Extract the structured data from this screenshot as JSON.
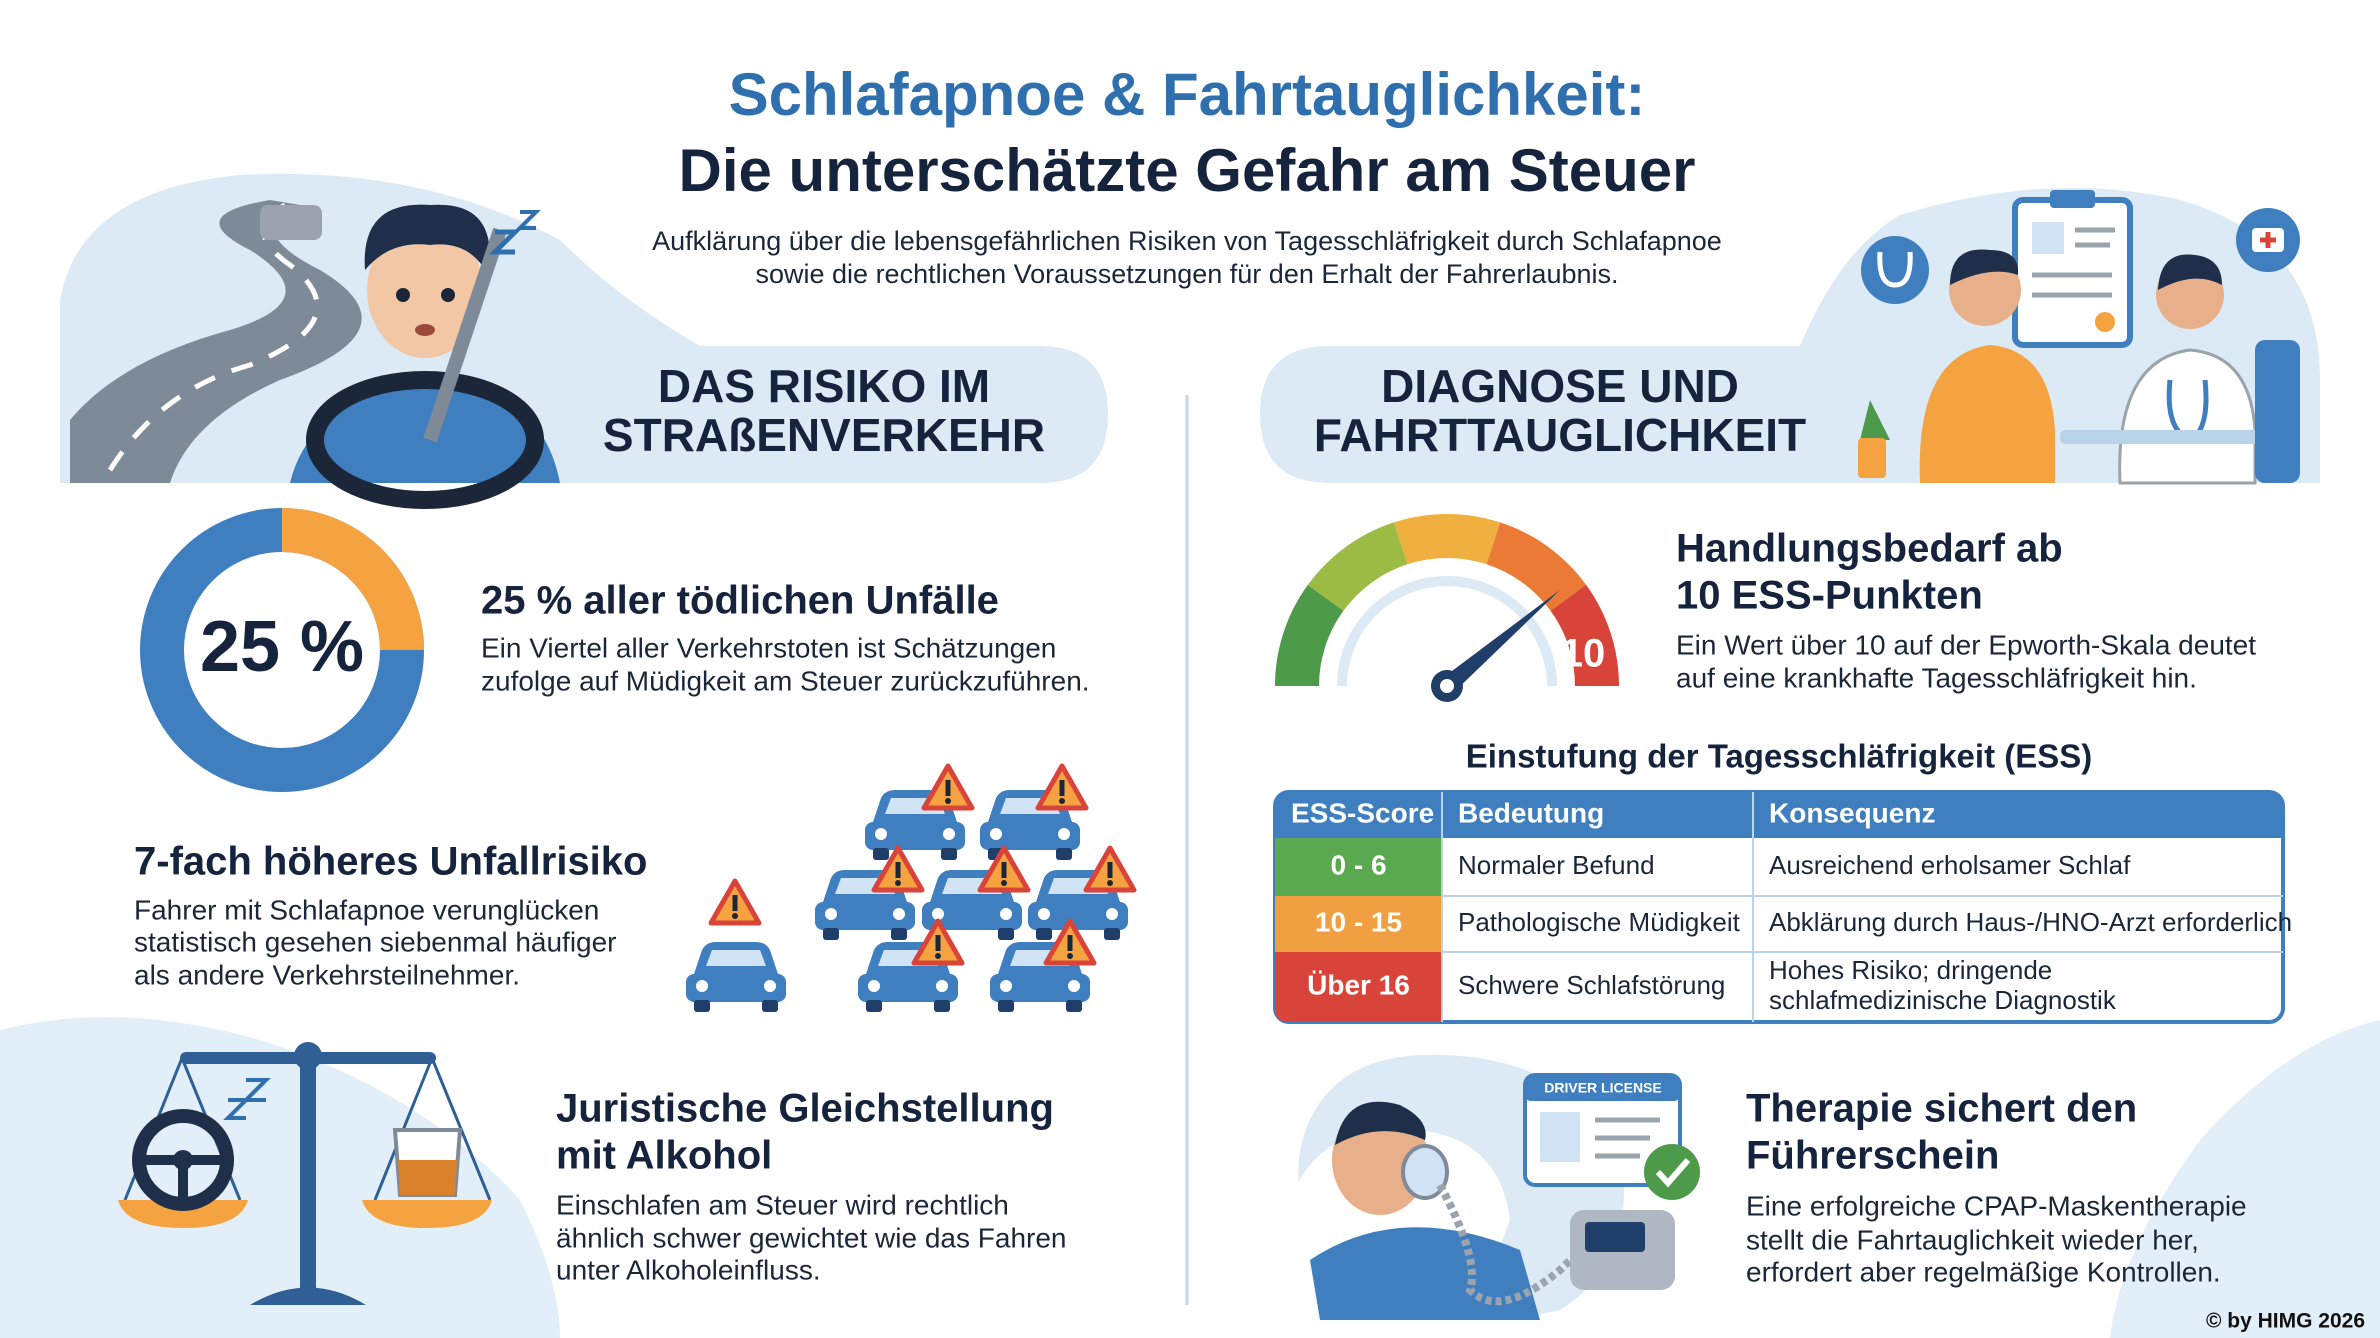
{
  "header": {
    "title_line1": "Schlafapnoe & Fahrtauglichkeit:",
    "title_line2": "Die unterschätzte Gefahr am Steuer",
    "subtitle": [
      "Aufklärung über die lebensgefährlichen Risiken von Tagesschläfrigkeit durch Schlafapnoe",
      "sowie die rechtlichen Voraussetzungen für den Erhalt der Fahrerlaubnis."
    ]
  },
  "risk": {
    "heading": [
      "DAS RISIKO IM",
      "STRAßENVERKEHR"
    ],
    "fatal": {
      "value": 25,
      "value_label": "25 %",
      "title": "25 % aller tödlichen Unfälle",
      "text": [
        "Ein Viertel aller Verkehrstoten ist Schätzungen",
        "zufolge auf Müdigkeit am Steuer zurückzuführen."
      ]
    },
    "accident": {
      "title": "7-fach höheres Unfallrisiko",
      "text": [
        "Fahrer mit Schlafapnoe verunglücken",
        "statistisch gesehen siebenmal häufiger",
        "als andere Verkehrsteilnehmer."
      ]
    },
    "legal": {
      "title": [
        "Juristische Gleichstellung",
        "mit Alkohol"
      ],
      "text": [
        "Einschlafen am Steuer wird rechtlich",
        "ähnlich schwer gewichtet wie das Fahren",
        "unter Alkoholeinfluss."
      ]
    }
  },
  "diagnosis": {
    "heading": [
      "DIAGNOSE UND",
      "FAHRTTAUGLICHKEIT"
    ],
    "gauge_label": "10",
    "action": {
      "title": [
        "Handlungsbedarf ab",
        "10 ESS-Punkten"
      ],
      "text": [
        "Ein Wert über 10 auf der Epworth-Skala deutet",
        "auf eine krankhafte Tagesschläfrigkeit hin."
      ]
    },
    "table": {
      "title": "Einstufung der Tagesschläfrigkeit (ESS)",
      "columns": [
        "ESS-Score",
        "Bedeutung",
        "Konsequenz"
      ],
      "rows": [
        [
          "0 - 6",
          "Normaler Befund",
          [
            "Ausreichend erholsamer Schlaf"
          ]
        ],
        [
          "10 - 15",
          "Pathologische Müdigkeit",
          [
            "Abklärung durch Haus-/HNO-Arzt erforderlich"
          ]
        ],
        [
          "Über 16",
          "Schwere Schlafstörung",
          [
            "Hohes Risiko; dringende",
            "schlafmedizinische Diagnostik"
          ]
        ]
      ]
    },
    "license_label": "DRIVER LICENSE",
    "therapy": {
      "title": [
        "Therapie sichert den",
        "Führerschein"
      ],
      "text": [
        "Eine erfolgreiche CPAP-Maskentherapie",
        "stellt die Fahrtauglichkeit wieder her,",
        "erfordert aber regelmäßige Kontrollen."
      ]
    }
  },
  "footer": "© by HIMG 2026"
}
